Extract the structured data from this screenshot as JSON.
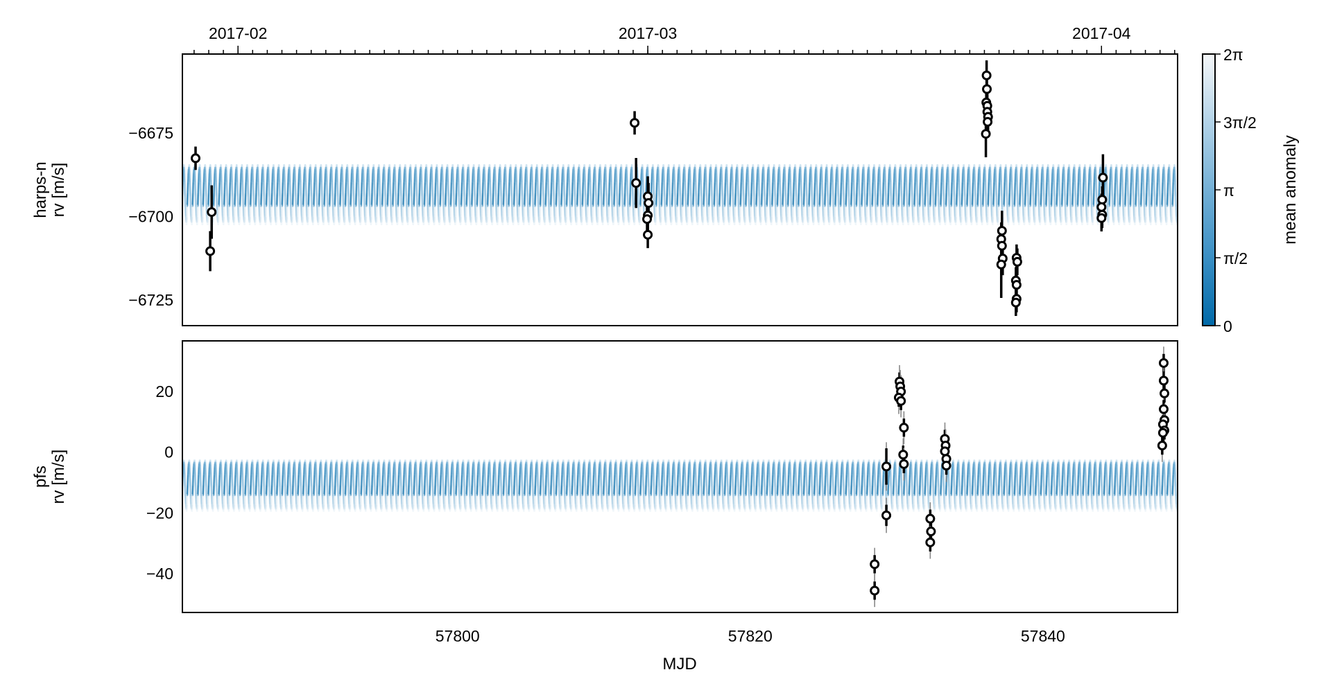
{
  "chart_data": {
    "type": "scatter",
    "xlabel": "MJD",
    "xlim": [
      57781.2,
      57849.2
    ],
    "x_ticks": [
      57800,
      57820,
      57840
    ],
    "top_axis": {
      "ticks": [
        {
          "label": "2017-02",
          "mjd": 57785
        },
        {
          "label": "2017-03",
          "mjd": 57813
        },
        {
          "label": "2017-04",
          "mjd": 57844
        }
      ],
      "minor_tick_every_days": 1
    },
    "colorbar": {
      "label": "mean anomaly",
      "range": [
        0,
        6.2832
      ],
      "tick_labels": [
        "0",
        "π/2",
        "π",
        "3π/2",
        "2π"
      ],
      "colors": [
        "#0069a8",
        "#3a8fc4",
        "#74b0d6",
        "#b3d3e8",
        "#f5f7f9"
      ]
    },
    "panels": [
      {
        "name": "harps-n",
        "ylabel": [
          "harps-n",
          "rv [m/s]"
        ],
        "ylim": [
          -6732.7,
          -6651.4
        ],
        "y_ticks": [
          -6725,
          -6700,
          -6675
        ],
        "y_tick_labels": [
          "−6725",
          "−6700",
          "−6675"
        ],
        "model_band": {
          "center": -6693.5,
          "amplitude": 8.5,
          "period_days": 0.36
        },
        "points": [
          [
            57782.1,
            -6682.6,
            3.5
          ],
          [
            57783.2,
            -6698.7,
            8
          ],
          [
            57783.1,
            -6710.4,
            6
          ],
          [
            57812.1,
            -6672.0,
            3.5
          ],
          [
            57812.2,
            -6690.0,
            7.5
          ],
          [
            57813.0,
            -6694.0,
            6
          ],
          [
            57813.05,
            -6696.0,
            6
          ],
          [
            57813.0,
            -6699.7,
            6
          ],
          [
            57812.95,
            -6700.8,
            4
          ],
          [
            57813.0,
            -6705.5,
            4
          ],
          [
            57836.15,
            -6657.8,
            4.5
          ],
          [
            57836.17,
            -6661.9,
            4
          ],
          [
            57836.13,
            -6665.9,
            4
          ],
          [
            57836.2,
            -6666.9,
            4
          ],
          [
            57836.2,
            -6668.7,
            4
          ],
          [
            57836.25,
            -6670.2,
            4
          ],
          [
            57836.22,
            -6671.7,
            4
          ],
          [
            57836.1,
            -6675.3,
            7
          ],
          [
            57837.2,
            -6704.3,
            6
          ],
          [
            57837.15,
            -6706.8,
            5
          ],
          [
            57837.2,
            -6708.8,
            5
          ],
          [
            57837.25,
            -6712.6,
            5
          ],
          [
            57837.15,
            -6714.4,
            10
          ],
          [
            57838.2,
            -6712.4,
            4
          ],
          [
            57838.25,
            -6713.6,
            4
          ],
          [
            57838.15,
            -6719.2,
            4
          ],
          [
            57838.2,
            -6720.5,
            4
          ],
          [
            57838.2,
            -6724.7,
            4
          ],
          [
            57838.15,
            -6725.8,
            4
          ],
          [
            57844.1,
            -6688.4,
            7
          ],
          [
            57844.05,
            -6695.0,
            4
          ],
          [
            57844.0,
            -6697.2,
            4
          ],
          [
            57844.05,
            -6699.5,
            4
          ],
          [
            57844.0,
            -6700.5,
            4
          ]
        ]
      },
      {
        "name": "pfs",
        "ylabel": [
          "pfs",
          "rv [m/s]"
        ],
        "ylim": [
          -52.8,
          36.7
        ],
        "y_ticks": [
          -40,
          -20,
          0,
          20
        ],
        "y_tick_labels": [
          "−40",
          "−20",
          "0",
          "20"
        ],
        "model_band": {
          "center": -11,
          "amplitude": 8,
          "period_days": 0.36
        },
        "jitter": 2.5,
        "points": [
          [
            57828.5,
            -36.9,
            3
          ],
          [
            57828.5,
            -45.6,
            3
          ],
          [
            57829.3,
            -4.7,
            6
          ],
          [
            57829.3,
            -20.8,
            3.5
          ],
          [
            57830.2,
            23.3,
            3
          ],
          [
            57830.25,
            21.7,
            3
          ],
          [
            57830.3,
            20.0,
            3
          ],
          [
            57830.15,
            18.0,
            3
          ],
          [
            57830.3,
            16.9,
            3
          ],
          [
            57830.5,
            8.1,
            3
          ],
          [
            57830.45,
            -0.8,
            3
          ],
          [
            57830.5,
            -3.9,
            3
          ],
          [
            57832.3,
            -21.9,
            3
          ],
          [
            57832.35,
            -26.1,
            3
          ],
          [
            57832.3,
            -29.7,
            3
          ],
          [
            57833.3,
            4.4,
            3
          ],
          [
            57833.35,
            2.2,
            3
          ],
          [
            57833.3,
            0.3,
            3
          ],
          [
            57833.4,
            -2.2,
            3
          ],
          [
            57833.4,
            -4.4,
            3
          ],
          [
            57848.25,
            29.4,
            3
          ],
          [
            57848.25,
            23.6,
            3
          ],
          [
            57848.3,
            19.4,
            3
          ],
          [
            57848.25,
            14.2,
            3
          ],
          [
            57848.3,
            10.6,
            3
          ],
          [
            57848.2,
            9.2,
            3
          ],
          [
            57848.3,
            7.2,
            3
          ],
          [
            57848.2,
            6.4,
            3
          ],
          [
            57848.15,
            2.2,
            3
          ]
        ]
      }
    ]
  }
}
